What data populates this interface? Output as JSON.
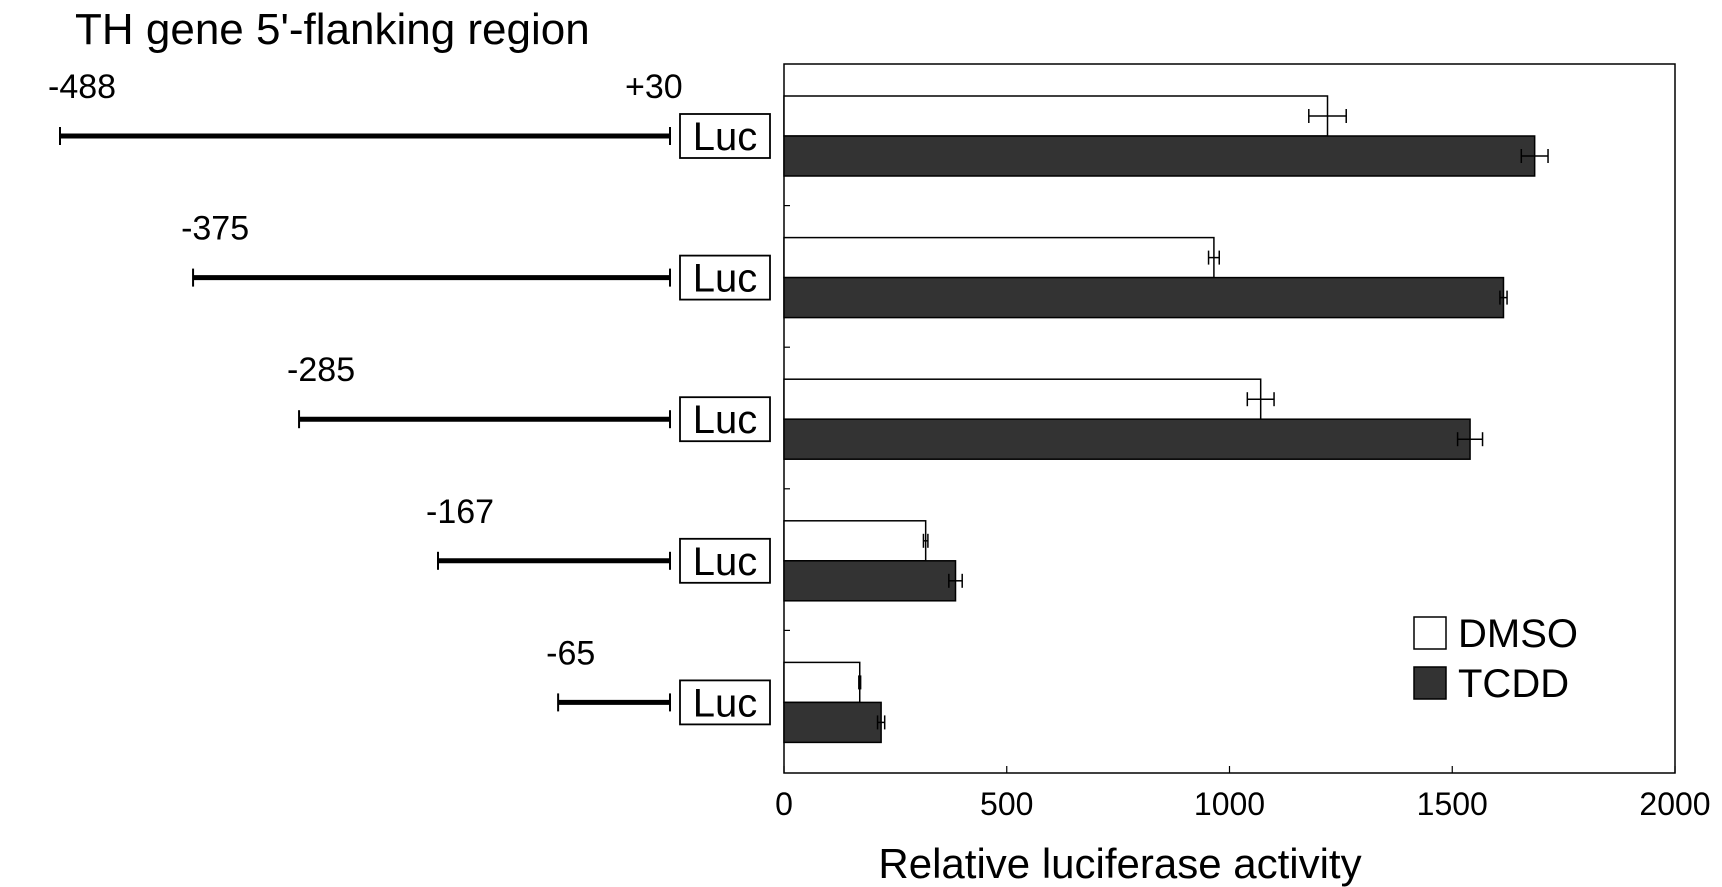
{
  "chart_data": {
    "type": "bar",
    "orientation": "horizontal",
    "title": "TH gene 5'-flanking region",
    "xlabel": "Relative luciferase activity",
    "ylabel": "",
    "xlim": [
      0,
      2000
    ],
    "xticks": [
      "0",
      "500",
      "1000",
      "1500",
      "2000"
    ],
    "grid": false,
    "legend_position": "bottom-right",
    "reporter_label": "Luc",
    "end_label": "+30",
    "end_position": 30,
    "categories": [
      "-488",
      "-375",
      "-285",
      "-167",
      "-65"
    ],
    "start_positions": [
      -488,
      -375,
      -285,
      -167,
      -65
    ],
    "series": [
      {
        "name": "DMSO",
        "color": "#ffffff",
        "values": [
          1220,
          965,
          1070,
          318,
          170
        ],
        "errors": [
          42,
          12,
          30,
          5,
          2
        ]
      },
      {
        "name": "TCDD",
        "color": "#333333",
        "values": [
          1685,
          1615,
          1540,
          385,
          218
        ],
        "errors": [
          30,
          8,
          28,
          15,
          8
        ]
      }
    ]
  }
}
